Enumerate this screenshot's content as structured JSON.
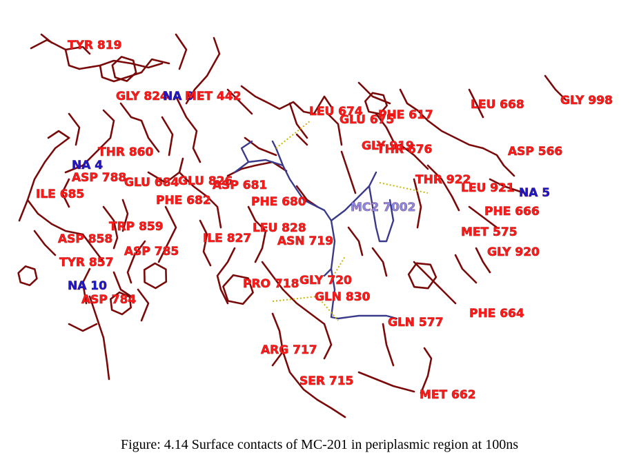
{
  "caption": "Figure: 4.14 Surface contacts of MC-201 in periplasmic region at 100ns",
  "colors": {
    "residue_label": "#ff1a1a",
    "ion_label": "#1a1acc",
    "ligand_label": "#8a8ae6",
    "bond": "#7a0a0a",
    "ligand_bond": "#3a3a8a",
    "hbond": "#c8b400"
  },
  "labels": [
    {
      "text": "TYR 819",
      "kind": "residue"
    },
    {
      "text": "GLY 824",
      "kind": "residue"
    },
    {
      "text": "NA 9",
      "kind": "ion"
    },
    {
      "text": "MET 442",
      "kind": "residue"
    },
    {
      "text": "LEU 674",
      "kind": "residue"
    },
    {
      "text": "PHE 617",
      "kind": "residue"
    },
    {
      "text": "GLU 675",
      "kind": "residue"
    },
    {
      "text": "LEU 668",
      "kind": "residue"
    },
    {
      "text": "GLY 998",
      "kind": "residue"
    },
    {
      "text": "GLY 919",
      "kind": "residue"
    },
    {
      "text": "THR 676",
      "kind": "residue"
    },
    {
      "text": "ASP 566",
      "kind": "residue"
    },
    {
      "text": "THR 860",
      "kind": "residue"
    },
    {
      "text": "NA 4",
      "kind": "ion"
    },
    {
      "text": "ASP 788",
      "kind": "residue"
    },
    {
      "text": "GLU 684",
      "kind": "residue"
    },
    {
      "text": "GLU 826",
      "kind": "residue"
    },
    {
      "text": "ASP 681",
      "kind": "residue"
    },
    {
      "text": "THR 922",
      "kind": "residue"
    },
    {
      "text": "LEU 921",
      "kind": "residue"
    },
    {
      "text": "NA 5",
      "kind": "ion"
    },
    {
      "text": "ILE 685",
      "kind": "residue"
    },
    {
      "text": "PHE 682",
      "kind": "residue"
    },
    {
      "text": "PHE 680",
      "kind": "residue"
    },
    {
      "text": "MC2 7002",
      "kind": "ligand"
    },
    {
      "text": "PHE 666",
      "kind": "residue"
    },
    {
      "text": "TRP 859",
      "kind": "residue"
    },
    {
      "text": "LEU 828",
      "kind": "residue"
    },
    {
      "text": "MET 575",
      "kind": "residue"
    },
    {
      "text": "ASP 858",
      "kind": "residue"
    },
    {
      "text": "ILE 827",
      "kind": "residue"
    },
    {
      "text": "ASN 719",
      "kind": "residue"
    },
    {
      "text": "ASP 785",
      "kind": "residue"
    },
    {
      "text": "GLY 920",
      "kind": "residue"
    },
    {
      "text": "TYR 857",
      "kind": "residue"
    },
    {
      "text": "GLY 720",
      "kind": "residue"
    },
    {
      "text": "PRO 718",
      "kind": "residue"
    },
    {
      "text": "NA 10",
      "kind": "ion"
    },
    {
      "text": "GLN 830",
      "kind": "residue"
    },
    {
      "text": "ASP 784",
      "kind": "residue"
    },
    {
      "text": "PHE 664",
      "kind": "residue"
    },
    {
      "text": "GLN 577",
      "kind": "residue"
    },
    {
      "text": "ARG 717",
      "kind": "residue"
    },
    {
      "text": "SER 715",
      "kind": "residue"
    },
    {
      "text": "MET 662",
      "kind": "residue"
    }
  ]
}
